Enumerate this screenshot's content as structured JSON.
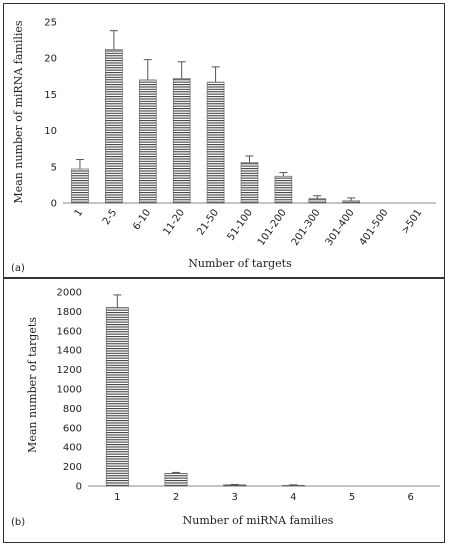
{
  "chart_data": [
    {
      "type": "bar",
      "panel_label": "(a)",
      "categories": [
        "1",
        "2-5",
        "6-10",
        "11-20",
        "21-50",
        "51-100",
        "101-200",
        "201-300",
        "301-400",
        "401-500",
        ">501"
      ],
      "values": [
        4.7,
        21.2,
        17.0,
        17.2,
        16.7,
        5.6,
        3.7,
        0.6,
        0.3,
        0.0,
        0.0
      ],
      "errors": [
        1.3,
        2.6,
        2.8,
        2.3,
        2.1,
        0.9,
        0.5,
        0.4,
        0.4,
        0.0,
        0.0
      ],
      "xlabel": "Number of targets",
      "ylabel": "Mean number of miRNA families",
      "ylim": [
        0,
        25
      ],
      "yticks": [
        0,
        5,
        10,
        15,
        20,
        25
      ],
      "grid": false,
      "bar_fill": "horizontal-stripes"
    },
    {
      "type": "bar",
      "panel_label": "(b)",
      "categories": [
        "1",
        "2",
        "3",
        "4",
        "5",
        "6"
      ],
      "values": [
        1840,
        130,
        12,
        6,
        2,
        2
      ],
      "errors": [
        130,
        10,
        4,
        6,
        0,
        0
      ],
      "xlabel": "Number of miRNA families",
      "ylabel": "Mean number of targets",
      "ylim": [
        0,
        2000
      ],
      "yticks": [
        0,
        200,
        400,
        600,
        800,
        1000,
        1200,
        1400,
        1600,
        1800,
        2000
      ],
      "grid": false,
      "bar_fill": "horizontal-stripes"
    }
  ],
  "colors": {
    "bar_stroke": "#555555",
    "stripe": "#444444",
    "frame": "#333333",
    "axis": "#888888"
  }
}
